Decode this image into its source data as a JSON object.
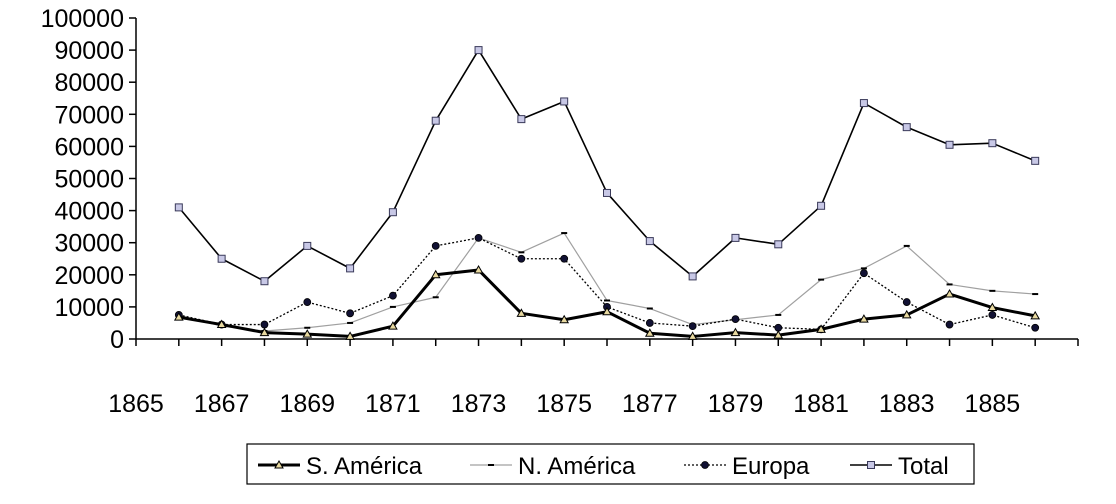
{
  "chart_data": {
    "type": "line",
    "x": [
      1866,
      1867,
      1868,
      1869,
      1870,
      1871,
      1872,
      1873,
      1874,
      1875,
      1876,
      1877,
      1878,
      1879,
      1880,
      1881,
      1882,
      1883,
      1884,
      1885,
      1886
    ],
    "x_ticks": [
      "1865",
      "1867",
      "1869",
      "1871",
      "1873",
      "1875",
      "1877",
      "1879",
      "1881",
      "1883",
      "1885"
    ],
    "y_ticks": [
      "0",
      "10000",
      "20000",
      "30000",
      "40000",
      "50000",
      "60000",
      "70000",
      "80000",
      "90000",
      "100000"
    ],
    "xlim": [
      1865,
      1887
    ],
    "ylim": [
      0,
      100000
    ],
    "grid": false,
    "legend_position": "bottom",
    "series": [
      {
        "name": "S. América",
        "color": "#000000",
        "marker": "triangle",
        "values": [
          6800,
          4500,
          2000,
          1500,
          800,
          4000,
          20000,
          21500,
          8000,
          6000,
          8500,
          1800,
          800,
          2000,
          1200,
          3000,
          6200,
          7500,
          14000,
          9800,
          7200
        ]
      },
      {
        "name": "N. América",
        "color": "#a0a0a0",
        "marker": "dash",
        "values": [
          7500,
          4000,
          2500,
          3500,
          5000,
          10000,
          13000,
          31500,
          27000,
          33000,
          12000,
          9500,
          4500,
          6000,
          7500,
          18500,
          22000,
          29000,
          17000,
          15000,
          14000
        ]
      },
      {
        "name": "Europa",
        "color": "#000000",
        "marker": "circle",
        "values": [
          7500,
          4500,
          4500,
          11500,
          8000,
          13500,
          29000,
          31500,
          25000,
          25000,
          10000,
          5000,
          4000,
          6200,
          3500,
          3000,
          20500,
          11500,
          4500,
          7500,
          3500
        ]
      },
      {
        "name": "Total",
        "color": "#000000",
        "marker": "square",
        "values": [
          41000,
          25000,
          18000,
          29000,
          22000,
          39500,
          68000,
          90000,
          68500,
          74000,
          45500,
          30500,
          19500,
          31500,
          29500,
          41500,
          73500,
          66000,
          60500,
          61000,
          55500
        ]
      }
    ]
  }
}
